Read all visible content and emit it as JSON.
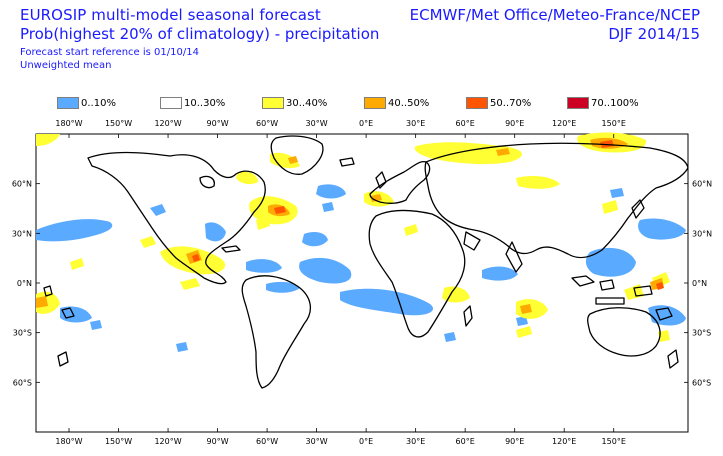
{
  "header": {
    "title": "EUROSIP multi-model seasonal forecast",
    "subtitle": "Prob(highest 20% of climatology) - precipitation",
    "reference": "Forecast start reference is 01/10/14",
    "mean": "Unweighted mean",
    "centres": "ECMWF/Met Office/Meteo-France/NCEP",
    "season": "DJF 2014/15"
  },
  "legend": [
    {
      "label": "0..10%",
      "color": "#5aaaff"
    },
    {
      "label": "10..30%",
      "color": "#ffffff"
    },
    {
      "label": "30..40%",
      "color": "#ffff33"
    },
    {
      "label": "40..50%",
      "color": "#ffaa00"
    },
    {
      "label": "50..70%",
      "color": "#ff5500"
    },
    {
      "label": "70..100%",
      "color": "#cc0022"
    }
  ],
  "axes": {
    "lon_labels": [
      "180°W",
      "150°W",
      "120°W",
      "90°W",
      "60°W",
      "30°W",
      "0°E",
      "30°E",
      "60°E",
      "90°E",
      "120°E",
      "150°E"
    ],
    "lon_values": [
      -180,
      -150,
      -120,
      -90,
      -60,
      -30,
      0,
      30,
      60,
      90,
      120,
      150
    ],
    "lat_labels": [
      "60°N",
      "30°N",
      "0°N",
      "30°S",
      "60°S"
    ],
    "lat_values": [
      60,
      30,
      0,
      -30,
      -60
    ]
  },
  "map_extent": {
    "lon_min": -200,
    "lon_max": 195,
    "lat_min": -90,
    "lat_max": 90
  }
}
